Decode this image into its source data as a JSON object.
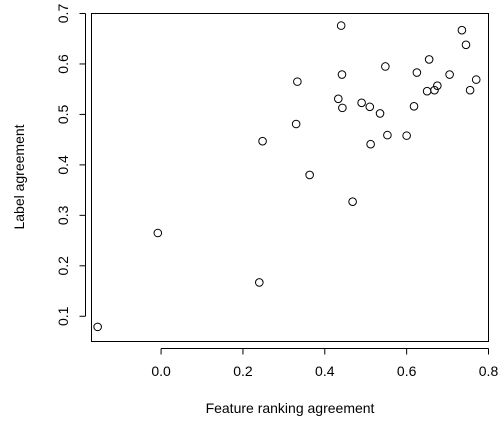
{
  "chart_data": {
    "type": "scatter",
    "xlabel": "Feature ranking agreement",
    "ylabel": "Label agreement",
    "xlim": [
      -0.17,
      0.8
    ],
    "ylim": [
      0.05,
      0.7
    ],
    "xticks": [
      0.0,
      0.2,
      0.4,
      0.6,
      0.8
    ],
    "xtick_labels": [
      "0.0",
      "0.2",
      "0.4",
      "0.6",
      "0.8"
    ],
    "yticks": [
      0.1,
      0.2,
      0.3,
      0.4,
      0.5,
      0.6,
      0.7
    ],
    "ytick_labels": [
      "0.1",
      "0.2",
      "0.3",
      "0.4",
      "0.5",
      "0.6",
      "0.7"
    ],
    "grid": false,
    "marker": "open-circle",
    "points": [
      {
        "x": -0.155,
        "y": 0.079
      },
      {
        "x": -0.008,
        "y": 0.265
      },
      {
        "x": 0.24,
        "y": 0.167
      },
      {
        "x": 0.248,
        "y": 0.447
      },
      {
        "x": 0.33,
        "y": 0.481
      },
      {
        "x": 0.333,
        "y": 0.565
      },
      {
        "x": 0.363,
        "y": 0.38
      },
      {
        "x": 0.433,
        "y": 0.531
      },
      {
        "x": 0.44,
        "y": 0.676
      },
      {
        "x": 0.442,
        "y": 0.579
      },
      {
        "x": 0.443,
        "y": 0.513
      },
      {
        "x": 0.468,
        "y": 0.327
      },
      {
        "x": 0.49,
        "y": 0.523
      },
      {
        "x": 0.51,
        "y": 0.515
      },
      {
        "x": 0.512,
        "y": 0.441
      },
      {
        "x": 0.535,
        "y": 0.502
      },
      {
        "x": 0.548,
        "y": 0.595
      },
      {
        "x": 0.553,
        "y": 0.459
      },
      {
        "x": 0.6,
        "y": 0.458
      },
      {
        "x": 0.618,
        "y": 0.516
      },
      {
        "x": 0.625,
        "y": 0.583
      },
      {
        "x": 0.65,
        "y": 0.546
      },
      {
        "x": 0.655,
        "y": 0.609
      },
      {
        "x": 0.668,
        "y": 0.548
      },
      {
        "x": 0.675,
        "y": 0.557
      },
      {
        "x": 0.705,
        "y": 0.579
      },
      {
        "x": 0.735,
        "y": 0.667
      },
      {
        "x": 0.745,
        "y": 0.638
      },
      {
        "x": 0.755,
        "y": 0.548
      },
      {
        "x": 0.77,
        "y": 0.569
      }
    ]
  }
}
